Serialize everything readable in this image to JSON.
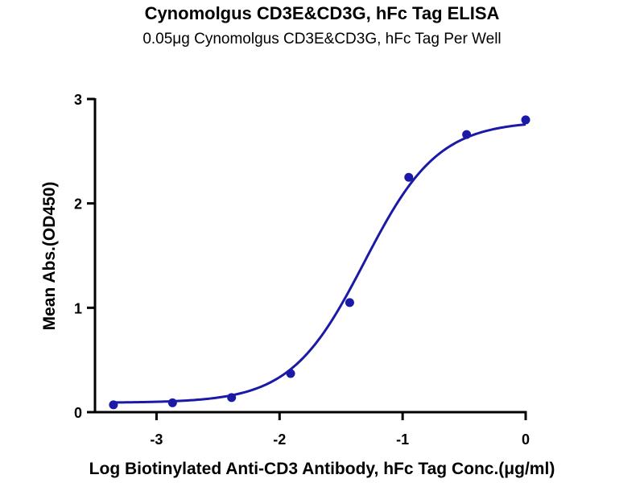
{
  "chart_data": {
    "type": "scatter",
    "title": "Cynomolgus CD3E&CD3G, hFc Tag ELISA",
    "subtitle": "0.05μg Cynomolgus CD3E&CD3G, hFc Tag Per Well",
    "xlabel": "Log Biotinylated Anti-CD3 Antibody, hFc Tag Conc.(μg/ml)",
    "ylabel": "Mean Abs.(OD450)",
    "xlim": [
      -3.5,
      0
    ],
    "ylim": [
      0,
      3
    ],
    "x_ticks": [
      "-3",
      "-2",
      "-1",
      "0"
    ],
    "y_ticks": [
      "0",
      "1",
      "2",
      "3"
    ],
    "grid": false,
    "color": "#1a1aa6",
    "series": [
      {
        "x": [
          -3.35,
          -2.87,
          -2.39,
          -1.91,
          -1.43,
          -0.95,
          -0.48,
          0.0
        ],
        "y": [
          0.07,
          0.09,
          0.14,
          0.37,
          1.05,
          2.25,
          2.66,
          2.8
        ]
      }
    ],
    "fit": {
      "model": "4PL",
      "bottom": 0.09,
      "top": 2.79,
      "log_ec50": -1.31,
      "hill_slope": 1.45
    }
  }
}
